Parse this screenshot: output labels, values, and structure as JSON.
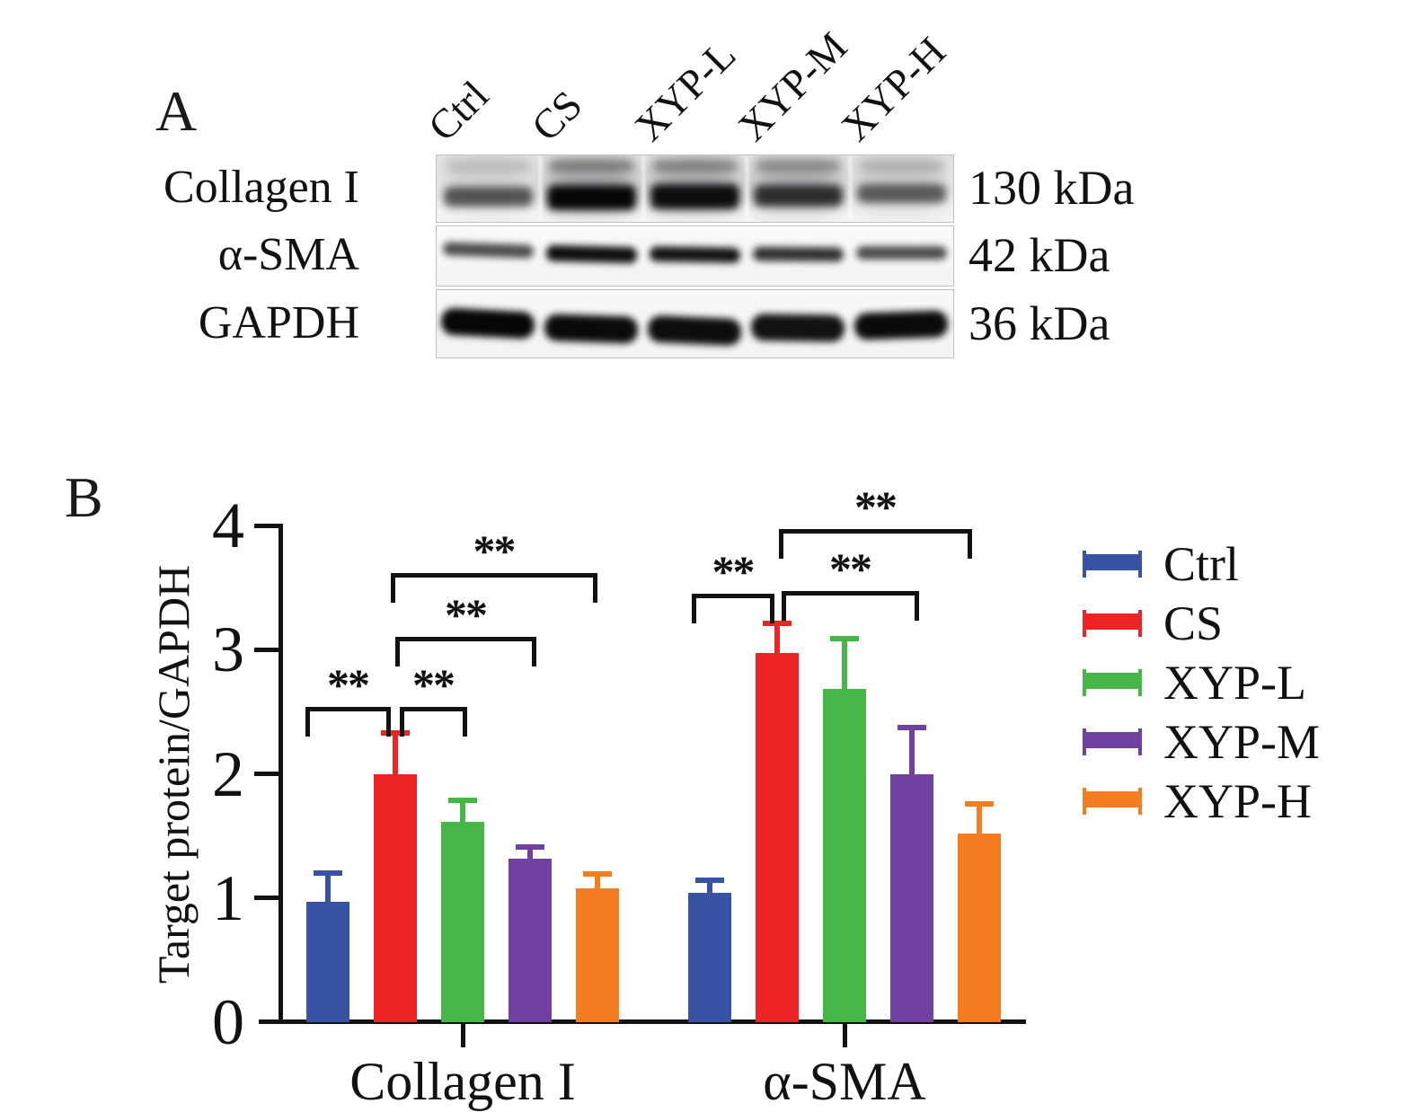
{
  "figure": {
    "panelA": {
      "label": "A",
      "lane_labels": [
        "Ctrl",
        "CS",
        "XYP-L",
        "XYP-M",
        "XYP-H"
      ],
      "rows": [
        {
          "protein": "Collagen I",
          "kda": "130 kDa",
          "band_intensity": [
            0.5,
            1.0,
            0.95,
            0.72,
            0.45
          ],
          "upper_smear": [
            0.15,
            0.45,
            0.42,
            0.38,
            0.2
          ],
          "lane_shade": [
            0.35,
            0.85,
            0.8,
            0.75,
            0.45
          ],
          "bg": "#e4e4e6"
        },
        {
          "protein": "α-SMA",
          "kda": "42 kDa",
          "band_intensity": [
            0.6,
            0.95,
            0.92,
            0.75,
            0.6
          ],
          "upper_smear": [
            0,
            0,
            0,
            0,
            0
          ],
          "lane_shade": [
            0,
            0,
            0,
            0,
            0
          ],
          "bg": "#fafaf8"
        },
        {
          "protein": "GAPDH",
          "kda": "36 kDa",
          "band_intensity": [
            1.0,
            0.97,
            0.96,
            0.94,
            0.97
          ],
          "upper_smear": [
            0,
            0,
            0,
            0,
            0
          ],
          "lane_shade": [
            0,
            0,
            0,
            0,
            0
          ],
          "bg": "#f8f8f6"
        }
      ]
    },
    "panelB": {
      "label": "B"
    }
  },
  "chart_data": {
    "type": "bar",
    "title": "",
    "categories": [
      "Collagen I",
      "α-SMA"
    ],
    "series": [
      {
        "name": "Ctrl",
        "color": "#3953a4",
        "values": [
          0.97,
          1.04
        ],
        "sd_upper": [
          0.23,
          0.1
        ]
      },
      {
        "name": "CS",
        "color": "#ec2426",
        "values": [
          2.0,
          2.97
        ],
        "sd_upper": [
          0.33,
          0.24
        ]
      },
      {
        "name": "XYP-L",
        "color": "#47b649",
        "values": [
          1.61,
          2.68
        ],
        "sd_upper": [
          0.18,
          0.41
        ]
      },
      {
        "name": "XYP-M",
        "color": "#7041a0",
        "values": [
          1.32,
          2.0
        ],
        "sd_upper": [
          0.09,
          0.37
        ]
      },
      {
        "name": "XYP-H",
        "color": "#f47d21",
        "values": [
          1.08,
          1.52
        ],
        "sd_upper": [
          0.11,
          0.24
        ]
      }
    ],
    "xlabel": "",
    "ylabel": "Target protein/GAPDH",
    "ylim": [
      0,
      4
    ],
    "yticks": [
      "0",
      "1",
      "2",
      "3",
      "4"
    ],
    "grid": false,
    "legend_position": "right",
    "error_bars": "upper SD only, drawn in series color",
    "significance_brackets": [
      {
        "category": 0,
        "between": [
          "Ctrl",
          "CS"
        ],
        "from": 0,
        "to": 1,
        "dx1": -25,
        "dx2": -10,
        "height": 2.54,
        "label": "**"
      },
      {
        "category": 0,
        "between": [
          "CS",
          "XYP-L"
        ],
        "from": 1,
        "to": 2,
        "dx1": 5,
        "dx2": 0,
        "height": 2.54,
        "label": "**"
      },
      {
        "category": 0,
        "between": [
          "CS",
          "XYP-M"
        ],
        "from": 1,
        "to": 3,
        "dx1": 0,
        "dx2": 2,
        "height": 3.1,
        "label": "**"
      },
      {
        "category": 0,
        "between": [
          "CS",
          "XYP-H"
        ],
        "from": 1,
        "to": 4,
        "dx1": -5,
        "dx2": -5,
        "height": 3.62,
        "label": "**"
      },
      {
        "category": 1,
        "between": [
          "Ctrl",
          "CS"
        ],
        "from": 0,
        "to": 1,
        "dx1": -20,
        "dx2": -8,
        "height": 3.45,
        "label": "**"
      },
      {
        "category": 1,
        "between": [
          "CS",
          "XYP-M"
        ],
        "from": 1,
        "to": 3,
        "dx1": 5,
        "dx2": 3,
        "height": 3.47,
        "label": "**"
      },
      {
        "category": 1,
        "between": [
          "CS",
          "XYP-H"
        ],
        "from": 1,
        "to": 4,
        "dx1": 2,
        "dx2": -13,
        "height": 3.97,
        "label": "**"
      }
    ]
  }
}
